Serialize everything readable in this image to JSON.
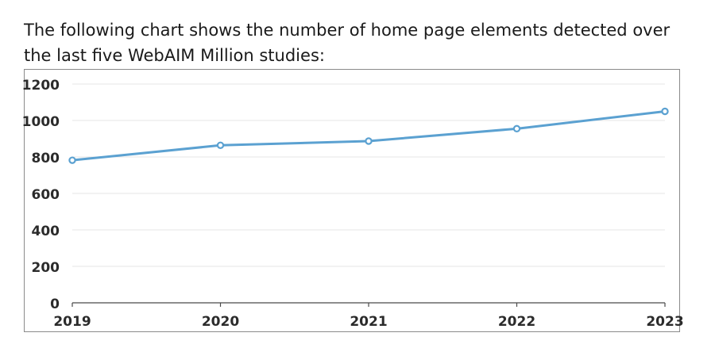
{
  "intro_text": "The following chart shows the number of home page elements detected over the last five WebAIM Million studies:",
  "chart_data": {
    "type": "line",
    "title": "",
    "xlabel": "",
    "ylabel": "",
    "categories": [
      "2019",
      "2020",
      "2021",
      "2022",
      "2023"
    ],
    "series": [
      {
        "values": [
          782,
          864,
          887,
          955,
          1050
        ],
        "color": "#5ba1d1"
      }
    ],
    "ylim": [
      0,
      1200
    ],
    "yticks": [
      0,
      200,
      400,
      600,
      800,
      1000,
      1200
    ],
    "grid": true,
    "legend": "none"
  }
}
